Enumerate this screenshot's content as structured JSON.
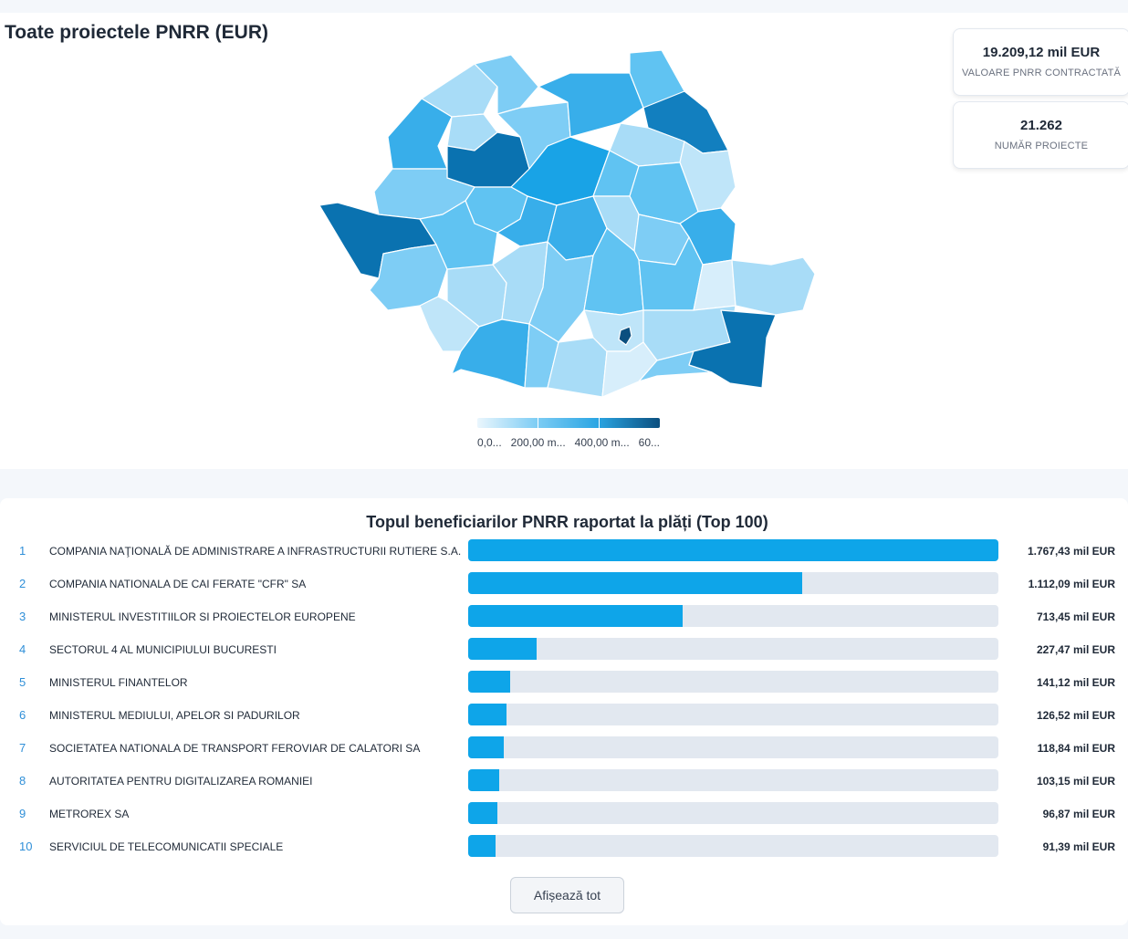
{
  "map_section": {
    "title": "Toate proiectele PNRR (EUR)",
    "legend": {
      "labels": [
        "0,0...",
        "200,00 m...",
        "400,00 m...",
        "60..."
      ],
      "colors": [
        "#eaf6fd",
        "#7cccf4",
        "#2aa5e3",
        "#0b4f7f"
      ]
    }
  },
  "kpis": [
    {
      "value": "19.209,12 mil EUR",
      "label": "VALOARE PNRR CONTRACTATĂ"
    },
    {
      "value": "21.262",
      "label": "NUMĂR PROIECTE"
    }
  ],
  "top_beneficiaries": {
    "title": "Topul beneficiarilor PNRR raportat la plăți (Top 100)",
    "show_all_label": "Afișează tot",
    "bar_color": "#0ea5e9",
    "track_color": "#e2e8f0",
    "max_value": 1767.43,
    "rows": [
      {
        "rank": "1",
        "name": "COMPANIA NAŢIONALĂ DE ADMINISTRARE A INFRASTRUCTURII RUTIERE S.A.",
        "amount": 1767.43,
        "value_label": "1.767,43 mil EUR"
      },
      {
        "rank": "2",
        "name": "COMPANIA NATIONALA DE CAI FERATE \"CFR\" SA",
        "amount": 1112.09,
        "value_label": "1.112,09 mil EUR"
      },
      {
        "rank": "3",
        "name": "MINISTERUL INVESTITIILOR SI PROIECTELOR EUROPENE",
        "amount": 713.45,
        "value_label": "713,45 mil EUR"
      },
      {
        "rank": "4",
        "name": "SECTORUL 4 AL MUNICIPIULUI BUCURESTI",
        "amount": 227.47,
        "value_label": "227,47 mil EUR"
      },
      {
        "rank": "5",
        "name": "MINISTERUL FINANTELOR",
        "amount": 141.12,
        "value_label": "141,12 mil EUR"
      },
      {
        "rank": "6",
        "name": "MINISTERUL MEDIULUI, APELOR SI PADURILOR",
        "amount": 126.52,
        "value_label": "126,52 mil EUR"
      },
      {
        "rank": "7",
        "name": "SOCIETATEA NATIONALA DE TRANSPORT FEROVIAR DE CALATORI SA",
        "amount": 118.84,
        "value_label": "118,84 mil EUR"
      },
      {
        "rank": "8",
        "name": "AUTORITATEA PENTRU DIGITALIZAREA ROMANIEI",
        "amount": 103.15,
        "value_label": "103,15 mil EUR"
      },
      {
        "rank": "9",
        "name": "METROREX SA",
        "amount": 96.87,
        "value_label": "96,87 mil EUR"
      },
      {
        "rank": "10",
        "name": "SERVICIUL DE TELECOMUNICATII SPECIALE",
        "amount": 91.39,
        "value_label": "91,39 mil EUR"
      }
    ]
  }
}
